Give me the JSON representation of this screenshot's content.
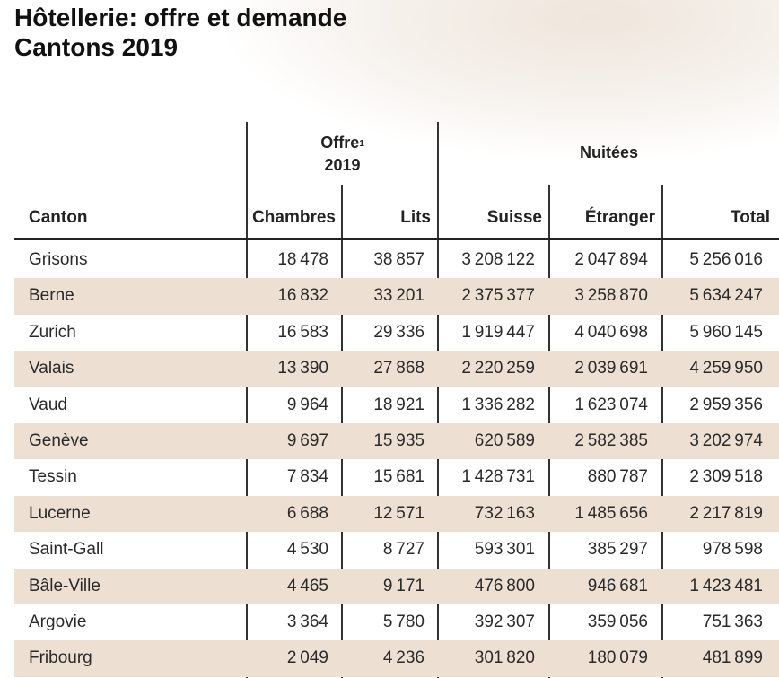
{
  "title": {
    "line1": "Hôtellerie: offre et demande",
    "line2": "Cantons 2019"
  },
  "groups": {
    "offre": {
      "label": "Offre",
      "footnote": "1",
      "year": "2019"
    },
    "nuitees": {
      "label": "Nuitées"
    }
  },
  "columns": [
    "Canton",
    "Chambres",
    "Lits",
    "Suisse",
    "Étranger",
    "Total"
  ],
  "rows": [
    [
      "Grisons",
      "18478",
      "38857",
      "3208122",
      "2047894",
      "5256016"
    ],
    [
      "Berne",
      "16832",
      "33201",
      "2375377",
      "3258870",
      "5634247"
    ],
    [
      "Zurich",
      "16583",
      "29336",
      "1919447",
      "4040698",
      "5960145"
    ],
    [
      "Valais",
      "13390",
      "27868",
      "2220259",
      "2039691",
      "4259950"
    ],
    [
      "Vaud",
      "9964",
      "18921",
      "1336282",
      "1623074",
      "2959356"
    ],
    [
      "Genève",
      "9697",
      "15935",
      "620589",
      "2582385",
      "3202974"
    ],
    [
      "Tessin",
      "7834",
      "15681",
      "1428731",
      "880787",
      "2309518"
    ],
    [
      "Lucerne",
      "6688",
      "12571",
      "732163",
      "1485656",
      "2217819"
    ],
    [
      "Saint-Gall",
      "4530",
      "8727",
      "593301",
      "385297",
      "978598"
    ],
    [
      "Bâle-Ville",
      "4465",
      "9171",
      "476800",
      "946681",
      "1423481"
    ],
    [
      "Argovie",
      "3364",
      "5780",
      "392307",
      "359056",
      "751363"
    ],
    [
      "Fribourg",
      "2049",
      "4236",
      "301820",
      "180079",
      "481899"
    ]
  ],
  "colors": {
    "shade": "#ede0d3",
    "rule": "#222222"
  }
}
